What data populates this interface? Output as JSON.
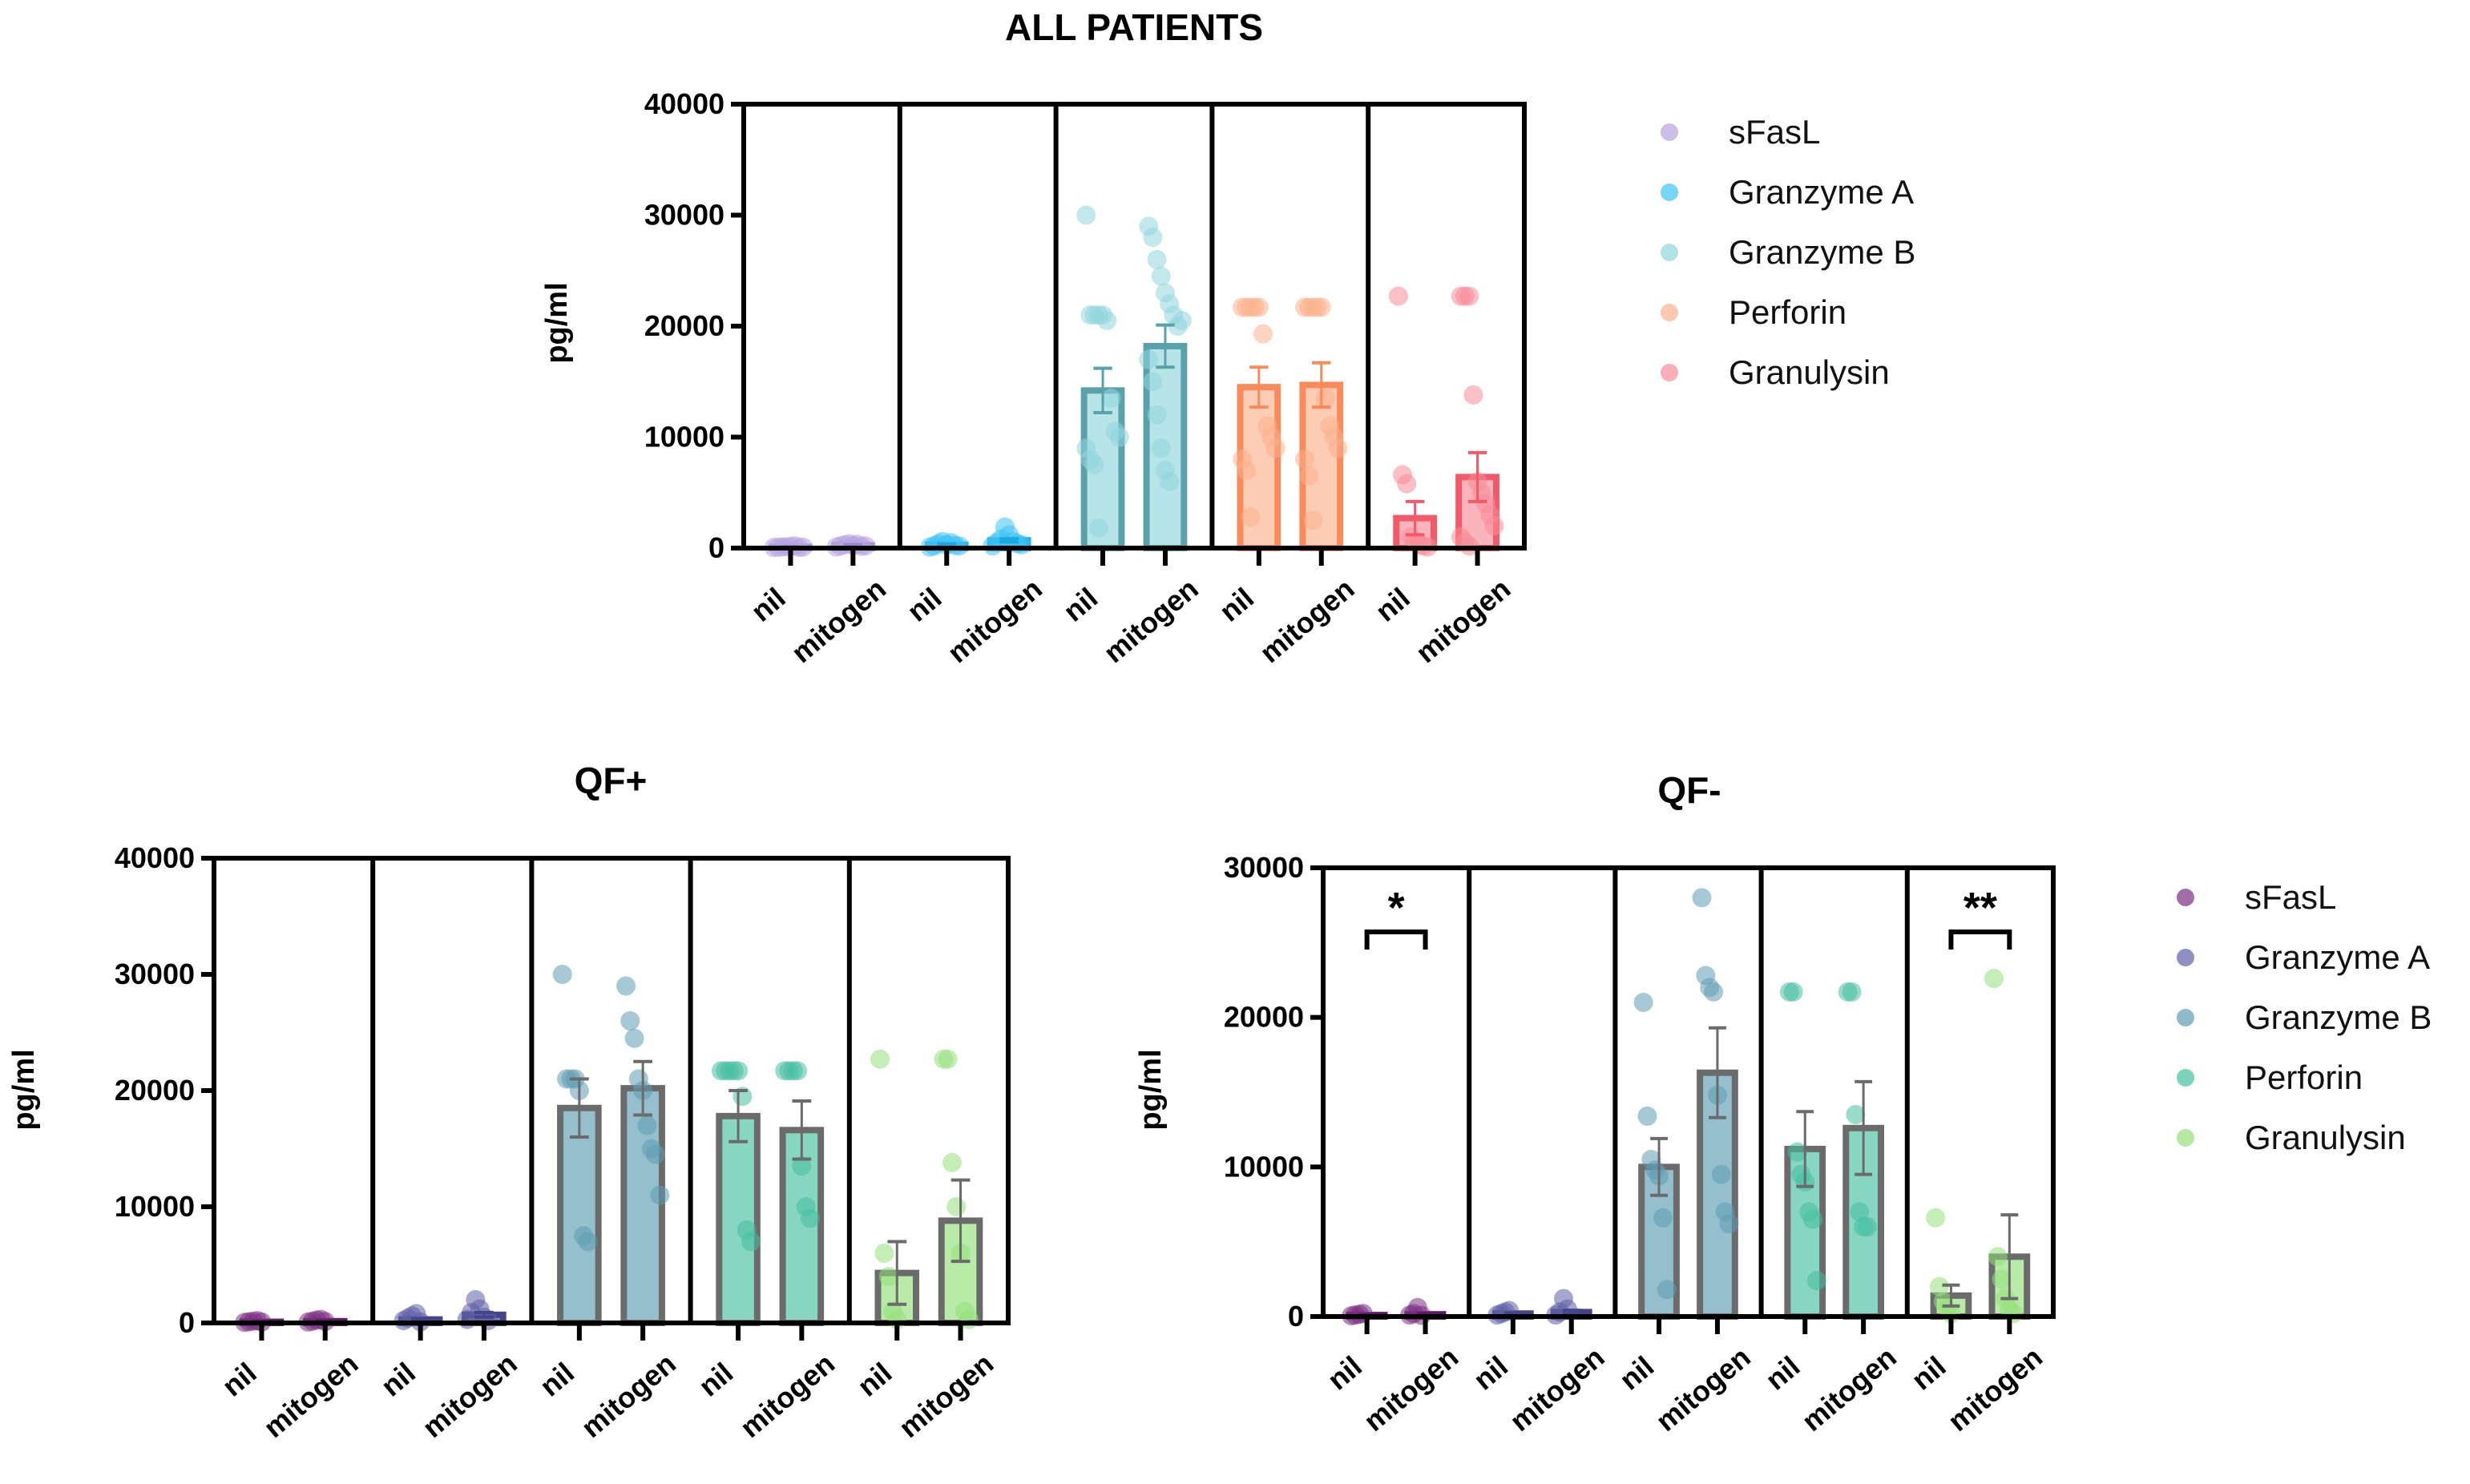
{
  "chart_data": [
    {
      "type": "bar",
      "title": "ALL PATIENTS",
      "ylabel": "pg/ml",
      "xlabel": "",
      "ylim": [
        0,
        40000
      ],
      "yticks": [
        0,
        10000,
        20000,
        30000,
        40000
      ],
      "conditions": [
        "nil",
        "mitogen"
      ],
      "legend_position": "right",
      "series": [
        {
          "name": "sFasL",
          "color": "#b7a3e0",
          "edge": "#9b84d0",
          "nil": {
            "mean": 100,
            "sem": 40,
            "points": [
              50,
              80,
              100,
              120,
              150,
              200,
              60,
              90
            ]
          },
          "mitogen": {
            "mean": 250,
            "sem": 60,
            "points": [
              100,
              200,
              300,
              400,
              250,
              350,
              150,
              200
            ]
          }
        },
        {
          "name": "Granzyme A",
          "color": "#3cc3f5",
          "edge": "#1aa8e0",
          "nil": {
            "mean": 300,
            "sem": 80,
            "points": [
              100,
              200,
              400,
              600,
              300,
              500,
              250,
              200
            ]
          },
          "mitogen": {
            "mean": 700,
            "sem": 150,
            "points": [
              200,
              500,
              800,
              1900,
              1200,
              600,
              400,
              300
            ]
          }
        },
        {
          "name": "Granzyme B",
          "color": "#8fd6dc",
          "edge": "#5aa2aa",
          "nil": {
            "mean": 14200,
            "sem": 2000,
            "points": [
              30000,
              21000,
              21000,
              21000,
              21000,
              20500,
              13500,
              10500,
              10000,
              9000,
              8000,
              7500,
              1800
            ]
          },
          "mitogen": {
            "mean": 18200,
            "sem": 1900,
            "points": [
              29000,
              28000,
              26000,
              24500,
              23000,
              22000,
              21000,
              20000,
              20500,
              17000,
              15000,
              12000,
              9000,
              7000,
              6000
            ]
          }
        },
        {
          "name": "Perforin",
          "color": "#fbb08c",
          "edge": "#f98a5a",
          "nil": {
            "mean": 14500,
            "sem": 1800,
            "points": [
              21700,
              21700,
              21700,
              21700,
              21700,
              19300,
              11000,
              10000,
              9000,
              8000,
              7000,
              2800
            ]
          },
          "mitogen": {
            "mean": 14700,
            "sem": 2000,
            "points": [
              21700,
              21700,
              21700,
              21700,
              21700,
              13500,
              11000,
              10000,
              9000,
              8000,
              6500,
              2500
            ]
          }
        },
        {
          "name": "Granulysin",
          "color": "#f88c98",
          "edge": "#f25a6a",
          "nil": {
            "mean": 2700,
            "sem": 1500,
            "points": [
              22700,
              6600,
              5800,
              1000,
              500,
              300,
              200,
              100
            ]
          },
          "mitogen": {
            "mean": 6400,
            "sem": 2200,
            "points": [
              22700,
              22700,
              22700,
              13800,
              6000,
              5000,
              4000,
              3000,
              2000,
              1000,
              500,
              200
            ]
          }
        }
      ]
    },
    {
      "type": "bar",
      "title": "QF+",
      "ylabel": "pg/ml",
      "xlabel": "",
      "ylim": [
        0,
        40000
      ],
      "yticks": [
        0,
        10000,
        20000,
        30000,
        40000
      ],
      "conditions": [
        "nil",
        "mitogen"
      ],
      "series": [
        {
          "name": "sFasL",
          "color": "#7a2d82",
          "edge": "#5e1a66",
          "nil": {
            "mean": 100,
            "sem": 30,
            "points": [
              50,
              100,
              150,
              200,
              80
            ]
          },
          "mitogen": {
            "mean": 150,
            "sem": 40,
            "points": [
              80,
              150,
              250,
              300,
              120
            ]
          }
        },
        {
          "name": "Granzyme A",
          "color": "#5f5fa6",
          "edge": "#44448a",
          "nil": {
            "mean": 300,
            "sem": 80,
            "points": [
              200,
              400,
              600,
              800,
              100
            ]
          },
          "mitogen": {
            "mean": 700,
            "sem": 200,
            "points": [
              300,
              900,
              2000,
              1200,
              500,
              200
            ]
          }
        },
        {
          "name": "Granzyme B",
          "color": "#5e9db3",
          "edge": "#6b6b6b",
          "nil": {
            "mean": 18500,
            "sem": 2500,
            "points": [
              30000,
              21000,
              21000,
              21000,
              20000,
              7500,
              7000
            ]
          },
          "mitogen": {
            "mean": 20200,
            "sem": 2300,
            "points": [
              29000,
              26000,
              24500,
              21000,
              20000,
              17000,
              15000,
              14500,
              11000
            ]
          }
        },
        {
          "name": "Perforin",
          "color": "#45c0a0",
          "edge": "#6b6b6b",
          "nil": {
            "mean": 17800,
            "sem": 2200,
            "points": [
              21700,
              21700,
              21700,
              21700,
              21700,
              19500,
              8000,
              7000
            ]
          },
          "mitogen": {
            "mean": 16600,
            "sem": 2500,
            "points": [
              21700,
              21700,
              21700,
              21700,
              13500,
              10000,
              9000
            ]
          }
        },
        {
          "name": "Granulysin",
          "color": "#94e07a",
          "edge": "#6b6b6b",
          "nil": {
            "mean": 4300,
            "sem": 2700,
            "points": [
              22700,
              6000,
              4000,
              1000,
              300
            ]
          },
          "mitogen": {
            "mean": 8800,
            "sem": 3500,
            "points": [
              22700,
              22700,
              13800,
              10000,
              6000,
              1000,
              300
            ]
          }
        }
      ]
    },
    {
      "type": "bar",
      "title": "QF-",
      "ylabel": "pg/ml",
      "xlabel": "",
      "ylim": [
        0,
        30000
      ],
      "yticks": [
        0,
        10000,
        20000,
        30000
      ],
      "conditions": [
        "nil",
        "mitogen"
      ],
      "legend_position": "right",
      "significance": [
        {
          "series": "sFasL",
          "label": "*"
        },
        {
          "series": "Granulysin",
          "label": "**"
        }
      ],
      "series": [
        {
          "name": "sFasL",
          "color": "#7a2d82",
          "edge": "#5e1a66",
          "nil": {
            "mean": 100,
            "sem": 30,
            "points": [
              50,
              100,
              150,
              200
            ]
          },
          "mitogen": {
            "mean": 150,
            "sem": 60,
            "points": [
              100,
              200,
              600,
              80
            ]
          }
        },
        {
          "name": "Granzyme A",
          "color": "#5f5fa6",
          "edge": "#44448a",
          "nil": {
            "mean": 200,
            "sem": 50,
            "points": [
              100,
              200,
              300,
              400
            ]
          },
          "mitogen": {
            "mean": 300,
            "sem": 120,
            "points": [
              100,
              300,
              1200,
              500
            ]
          }
        },
        {
          "name": "Granzyme B",
          "color": "#5e9db3",
          "edge": "#6b6b6b",
          "nil": {
            "mean": 10000,
            "sem": 1900,
            "points": [
              21000,
              13400,
              10500,
              9800,
              9400,
              6600,
              1800
            ]
          },
          "mitogen": {
            "mean": 16300,
            "sem": 3000,
            "points": [
              28000,
              22800,
              22000,
              21700,
              14800,
              9500,
              7000,
              6200
            ]
          }
        },
        {
          "name": "Perforin",
          "color": "#45c0a0",
          "edge": "#6b6b6b",
          "nil": {
            "mean": 11200,
            "sem": 2500,
            "points": [
              21700,
              21700,
              11000,
              9500,
              9000,
              7000,
              6500,
              2400
            ]
          },
          "mitogen": {
            "mean": 12600,
            "sem": 3100,
            "points": [
              21700,
              21700,
              13500,
              7000,
              6000,
              6000
            ]
          }
        },
        {
          "name": "Granulysin",
          "color": "#94e07a",
          "edge": "#6b6b6b",
          "nil": {
            "mean": 1400,
            "sem": 700,
            "points": [
              6600,
              2000,
              1000,
              500,
              200
            ]
          },
          "mitogen": {
            "mean": 4000,
            "sem": 2800,
            "points": [
              22600,
              4000,
              2500,
              1200,
              500,
              200
            ]
          }
        }
      ]
    }
  ]
}
